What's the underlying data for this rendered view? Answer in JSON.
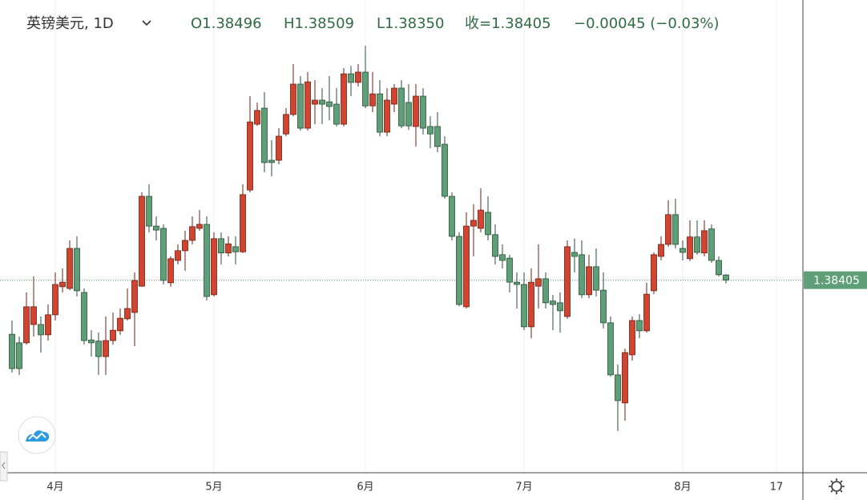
{
  "chart_data": {
    "type": "candlestick",
    "title": "英镑美元, 1D",
    "ohlc_labels": [
      "O1.38496",
      "H1.38509",
      "L1.38350",
      "收=1.38405",
      "−0.00045 (−0.03%)"
    ],
    "categories": [
      null,
      null,
      null,
      null,
      null,
      null,
      "4月",
      null,
      null,
      null,
      null,
      null,
      null,
      null,
      null,
      null,
      null,
      null,
      null,
      null,
      null,
      null,
      null,
      null,
      null,
      null,
      null,
      null,
      "5月",
      null,
      null,
      null,
      null,
      null,
      null,
      null,
      null,
      null,
      null,
      null,
      null,
      null,
      null,
      null,
      null,
      null,
      null,
      null,
      null,
      "6月",
      null,
      null,
      null,
      null,
      null,
      null,
      null,
      null,
      null,
      null,
      null,
      null,
      null,
      null,
      null,
      null,
      null,
      null,
      null,
      null,
      null,
      "7月",
      null,
      null,
      null,
      null,
      null,
      null,
      null,
      null,
      null,
      null,
      null,
      null,
      null,
      null,
      null,
      null,
      null,
      null,
      null,
      null,
      null,
      "8月",
      null,
      null,
      null,
      null,
      null,
      null,
      null,
      null,
      null,
      null,
      null,
      null,
      "17"
    ],
    "open": [
      1.3746,
      1.3731,
      1.3731,
      1.3763,
      1.3763,
      1.3745,
      1.378,
      1.3829,
      1.3826,
      1.3896,
      1.3819,
      1.3736,
      1.3734,
      1.3707,
      1.3735,
      1.3752,
      1.3773,
      1.3784,
      1.383,
      1.3987,
      1.3935,
      1.3931,
      1.3836,
      1.3875,
      1.3892,
      1.391,
      1.3931,
      1.3938,
      1.3815,
      1.3913,
      1.3888,
      1.3899,
      1.389,
      1.3998,
      1.4113,
      1.4141,
      1.405,
      1.405,
      1.4096,
      1.413,
      1.4183,
      1.4106,
      1.4148,
      1.4155,
      1.4152,
      1.4148,
      1.4113,
      1.4201,
      1.4186,
      1.4204,
      1.4145,
      1.4166,
      1.4099,
      1.4148,
      1.4176,
      1.4151,
      1.4109,
      1.4162,
      1.4109,
      1.4109,
      1.4078,
      1.3987,
      1.3917,
      1.3794,
      1.3935,
      1.3931,
      1.3959,
      1.392,
      1.3885,
      1.3879,
      1.3837,
      1.3833,
      1.3759,
      1.383,
      1.3843,
      1.3804,
      1.3801,
      1.3777,
      1.3889,
      1.3885,
      1.3815,
      1.3864,
      1.3823,
      1.3766,
      1.3675,
      1.3626,
      1.371,
      1.377,
      1.3752,
      1.3822,
      1.3882,
      1.3903,
      1.3955,
      1.3896,
      1.3878,
      1.3916,
      1.3888,
      1.393,
      1.3875,
      1.38496,
      null,
      null,
      null,
      null,
      null,
      null,
      null
    ],
    "high": [
      1.377,
      1.3742,
      1.3819,
      1.3847,
      1.3777,
      1.3798,
      1.3854,
      1.3861,
      1.391,
      1.3917,
      1.3826,
      1.3753,
      1.3749,
      1.3777,
      1.3784,
      1.3791,
      1.3826,
      1.3854,
      1.3994,
      1.4008,
      1.3952,
      1.3938,
      1.3882,
      1.3903,
      1.3927,
      1.3952,
      1.3963,
      1.3952,
      1.3924,
      1.3924,
      1.3917,
      1.3917,
      1.4008,
      1.4162,
      1.4151,
      1.4169,
      1.4085,
      1.4106,
      1.4141,
      1.4218,
      1.4197,
      1.4204,
      1.419,
      1.4176,
      1.4197,
      1.4176,
      1.4211,
      1.4215,
      1.4218,
      1.425,
      1.4204,
      1.419,
      1.4176,
      1.4183,
      1.419,
      1.4183,
      1.4183,
      1.4176,
      1.4127,
      1.4134,
      1.4092,
      1.3994,
      1.3924,
      1.3959,
      1.3973,
      1.4001,
      1.3987,
      1.3938,
      1.3903,
      1.3885,
      1.3854,
      1.3854,
      1.3861,
      1.3903,
      1.3854,
      1.3815,
      1.3819,
      1.391,
      1.3913,
      1.391,
      1.3885,
      1.3896,
      1.3854,
      1.3777,
      1.3693,
      1.3721,
      1.3777,
      1.3781,
      1.3836,
      1.3889,
      1.3917,
      1.398,
      1.3983,
      1.391,
      1.3945,
      1.3945,
      1.3945,
      1.3938,
      1.3882,
      1.38509,
      null,
      null,
      null,
      null,
      null,
      null,
      null
    ],
    "low": [
      1.3679,
      1.3675,
      1.3728,
      1.3742,
      1.3714,
      1.3735,
      1.377,
      1.3819,
      1.3823,
      1.3812,
      1.3728,
      1.3707,
      1.3675,
      1.3675,
      1.3728,
      1.3745,
      1.377,
      1.3725,
      1.3829,
      1.3924,
      1.391,
      1.3833,
      1.3829,
      1.3868,
      1.3857,
      1.3903,
      1.3927,
      1.3805,
      1.3812,
      1.3868,
      1.3882,
      1.3868,
      1.3888,
      1.3994,
      1.411,
      1.4029,
      1.4022,
      1.4043,
      1.4092,
      1.4127,
      1.4102,
      1.4102,
      1.4113,
      1.4113,
      1.412,
      1.4109,
      1.4109,
      1.4162,
      1.4179,
      1.4141,
      1.4134,
      1.4092,
      1.4092,
      1.4134,
      1.4106,
      1.4103,
      1.4074,
      1.4095,
      1.4071,
      1.4064,
      1.3983,
      1.391,
      1.3795,
      1.3791,
      1.3882,
      1.3924,
      1.391,
      1.3868,
      1.3861,
      1.3819,
      1.3791,
      1.3753,
      1.3739,
      1.3791,
      1.3791,
      1.3753,
      1.3749,
      1.3773,
      1.3854,
      1.3809,
      1.3809,
      1.3812,
      1.3756,
      1.3672,
      1.3577,
      1.3595,
      1.37,
      1.3739,
      1.3749,
      1.3816,
      1.3875,
      1.3899,
      1.3896,
      1.3875,
      1.3874,
      1.3885,
      1.3882,
      1.3871,
      1.3847,
      1.3835,
      null,
      null,
      null,
      null,
      null,
      null,
      null
    ],
    "close": [
      1.3686,
      1.3686,
      1.3794,
      1.3794,
      1.3745,
      1.378,
      1.3833,
      1.3837,
      1.3896,
      1.3822,
      1.3735,
      1.3731,
      1.3707,
      1.3735,
      1.3753,
      1.3774,
      1.3791,
      1.384,
      1.3987,
      1.3935,
      1.3928,
      1.384,
      1.3878,
      1.3892,
      1.391,
      1.3934,
      1.3938,
      1.3812,
      1.3913,
      1.3888,
      1.3904,
      1.389,
      1.399,
      1.4117,
      1.4137,
      1.4046,
      1.4046,
      1.4092,
      1.413,
      1.4183,
      1.4106,
      1.4187,
      1.4155,
      1.4148,
      1.4144,
      1.4113,
      1.4201,
      1.4186,
      1.4204,
      1.4145,
      1.4166,
      1.4099,
      1.4155,
      1.4176,
      1.411,
      1.411,
      1.4162,
      1.4106,
      1.4096,
      1.4074,
      1.3987,
      1.3917,
      1.3798,
      1.3935,
      1.3945,
      1.3963,
      1.392,
      1.3882,
      1.3875,
      1.3837,
      1.3833,
      1.3759,
      1.3837,
      1.3843,
      1.3801,
      1.3798,
      1.3787,
      1.3899,
      1.3882,
      1.3815,
      1.3864,
      1.3823,
      1.3766,
      1.3675,
      1.363,
      1.3714,
      1.377,
      1.3752,
      1.3816,
      1.3885,
      1.3903,
      1.3955,
      1.3903,
      1.3889,
      1.3916,
      1.3889,
      1.3927,
      1.3875,
      1.385,
      1.38405,
      null,
      null,
      null,
      null,
      null,
      null,
      null
    ],
    "up_color": "#d2442f",
    "down_color": "#5f9f78",
    "ylim": [
      1.3504,
      1.433
    ],
    "grid": true
  }
}
